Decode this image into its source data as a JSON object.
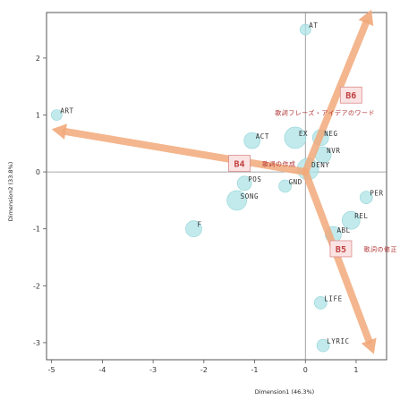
{
  "chart_data": {
    "type": "scatter",
    "xlabel": "Dimension1 (46.3%)",
    "ylabel": "Dimension2 (33.8%)",
    "xlim": [
      -5.1,
      1.6
    ],
    "ylim": [
      -3.3,
      2.8
    ],
    "xticks": [
      "-5",
      "-4",
      "-3",
      "-2",
      "-1",
      "0",
      "1"
    ],
    "yticks": [
      "2",
      "1",
      "0",
      "-1",
      "-2",
      "-3"
    ],
    "points": [
      {
        "label": "AT",
        "x": 0.0,
        "y": 2.5,
        "r": 6
      },
      {
        "label": "ART",
        "x": -4.9,
        "y": 1.0,
        "r": 6
      },
      {
        "label": "ACT",
        "x": -1.05,
        "y": 0.55,
        "r": 9
      },
      {
        "label": "EX",
        "x": -0.2,
        "y": 0.6,
        "r": 12
      },
      {
        "label": "NEG",
        "x": 0.3,
        "y": 0.6,
        "r": 9
      },
      {
        "label": "NVR",
        "x": 0.35,
        "y": 0.3,
        "r": 9
      },
      {
        "label": "DENY",
        "x": 0.05,
        "y": 0.05,
        "r": 12
      },
      {
        "label": "POS",
        "x": -1.2,
        "y": -0.2,
        "r": 8
      },
      {
        "label": "GND",
        "x": -0.4,
        "y": -0.25,
        "r": 7
      },
      {
        "label": "SONG",
        "x": -1.35,
        "y": -0.5,
        "r": 11
      },
      {
        "label": "F",
        "x": -2.2,
        "y": -1.0,
        "r": 9
      },
      {
        "label": "PER",
        "x": 1.2,
        "y": -0.45,
        "r": 7
      },
      {
        "label": "REL",
        "x": 0.9,
        "y": -0.85,
        "r": 10
      },
      {
        "label": "ABL",
        "x": 0.55,
        "y": -1.1,
        "r": 9
      },
      {
        "label": "LIFE",
        "x": 0.3,
        "y": -2.3,
        "r": 7
      },
      {
        "label": "LYRIC",
        "x": 0.35,
        "y": -3.05,
        "r": 7
      }
    ],
    "groups": [
      {
        "label": "B6",
        "x": 0.9,
        "y": 1.35
      },
      {
        "label": "B4",
        "x": -1.3,
        "y": 0.15
      },
      {
        "label": "B5",
        "x": 0.7,
        "y": -1.35
      }
    ],
    "group_sublabels": [
      {
        "text": "歌詞フレーズ・アイデアのワード",
        "x": -0.6,
        "y": 1.0
      },
      {
        "text": "歌詞の作成",
        "x": -0.85,
        "y": 0.1
      },
      {
        "text": "歌詞の修正",
        "x": 1.15,
        "y": -1.4
      }
    ],
    "vectors": [
      {
        "x": -5.0,
        "y": 0.75
      },
      {
        "x": 1.3,
        "y": 2.85
      },
      {
        "x": 1.35,
        "y": -3.2
      }
    ],
    "grid": false,
    "legend": "none"
  }
}
